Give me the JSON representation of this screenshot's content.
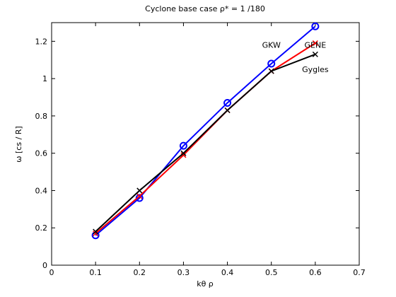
{
  "chart_data": {
    "type": "line",
    "title": "Cyclone base case ρ* = 1 /180",
    "xlabel": "kθ ρ",
    "ylabel": "ω [cs / R]",
    "xlim": [
      0,
      0.7
    ],
    "ylim": [
      0,
      1.3
    ],
    "xticks": [
      0,
      0.1,
      0.2,
      0.3,
      0.4,
      0.5,
      0.6,
      0.7
    ],
    "xtick_labels": [
      "0",
      "0.1",
      "0.2",
      "0.3",
      "0.4",
      "0.5",
      "0.6",
      "0.7"
    ],
    "yticks": [
      0,
      0.2,
      0.4,
      0.6,
      0.8,
      1.0,
      1.2
    ],
    "ytick_labels": [
      "0",
      "0.2",
      "0.4",
      "0.6",
      "0.8",
      "1",
      "1.2"
    ],
    "grid": false,
    "series": [
      {
        "name": "GKW",
        "color": "#0000ff",
        "marker": "circle",
        "x": [
          0.1,
          0.2,
          0.3,
          0.4,
          0.5,
          0.6
        ],
        "y": [
          0.16,
          0.36,
          0.64,
          0.87,
          1.08,
          1.28
        ]
      },
      {
        "name": "GENE",
        "color": "#ff0000",
        "marker": "x",
        "x": [
          0.1,
          0.2,
          0.3,
          0.4,
          0.5,
          0.6
        ],
        "y": [
          0.17,
          0.37,
          0.59,
          0.83,
          1.04,
          1.19
        ]
      },
      {
        "name": "Gygles",
        "color": "#000000",
        "marker": "x",
        "x": [
          0.1,
          0.2,
          0.3,
          0.4,
          0.5,
          0.6
        ],
        "y": [
          0.18,
          0.4,
          0.6,
          0.83,
          1.04,
          1.13
        ]
      }
    ],
    "annotations": [
      {
        "text": "GKW",
        "x": 0.5,
        "y": 1.18
      },
      {
        "text": "GENE",
        "x": 0.6,
        "y": 1.18
      },
      {
        "text": "Gygles",
        "x": 0.6,
        "y": 1.05
      }
    ]
  }
}
